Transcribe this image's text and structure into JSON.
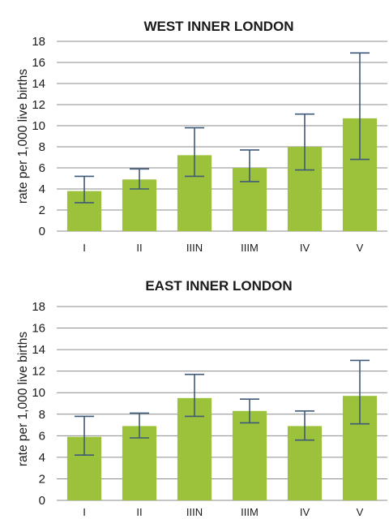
{
  "chart_data": [
    {
      "type": "bar",
      "title": "WEST INNER LONDON",
      "ylabel": "rate per 1,000 live births",
      "xlabel": "",
      "ylim": [
        0,
        18
      ],
      "yticks": [
        0,
        2,
        4,
        6,
        8,
        10,
        12,
        14,
        16,
        18
      ],
      "grid": true,
      "categories": [
        "I",
        "II",
        "IIIN",
        "IIIM",
        "IV",
        "V"
      ],
      "values": [
        3.8,
        4.9,
        7.2,
        6.0,
        8.0,
        10.7
      ],
      "error_low": [
        2.7,
        4.0,
        5.2,
        4.7,
        5.8,
        6.8
      ],
      "error_high": [
        5.2,
        5.9,
        9.8,
        7.7,
        11.1,
        16.9
      ],
      "colors": {
        "bar": "#9bc23a",
        "error": "#3f5a78",
        "grid": "#8c8c8c"
      }
    },
    {
      "type": "bar",
      "title": "EAST INNER LONDON",
      "ylabel": "rate per 1,000 live births",
      "xlabel": "",
      "ylim": [
        0,
        18
      ],
      "yticks": [
        0,
        2,
        4,
        6,
        8,
        10,
        12,
        14,
        16,
        18
      ],
      "grid": true,
      "categories": [
        "I",
        "II",
        "IIIN",
        "IIIM",
        "IV",
        "V"
      ],
      "values": [
        5.9,
        6.9,
        9.5,
        8.3,
        6.9,
        9.7
      ],
      "error_low": [
        4.2,
        5.8,
        7.8,
        7.2,
        5.6,
        7.1
      ],
      "error_high": [
        7.8,
        8.1,
        11.7,
        9.4,
        8.3,
        13.0
      ],
      "colors": {
        "bar": "#9bc23a",
        "error": "#3f5a78",
        "grid": "#8c8c8c"
      }
    }
  ]
}
